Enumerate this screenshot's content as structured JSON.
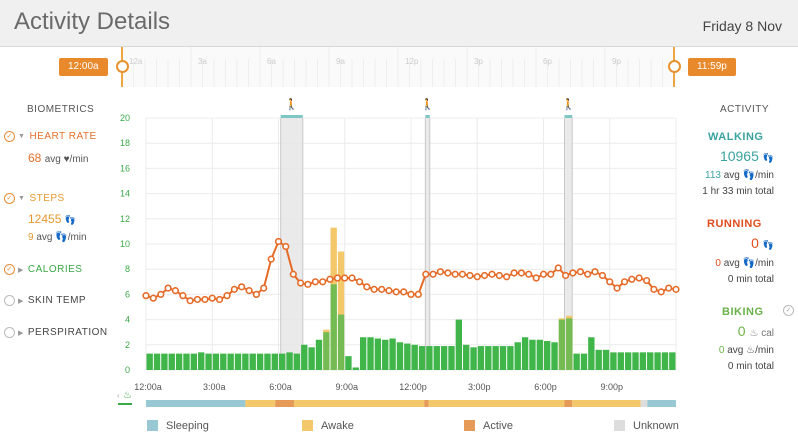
{
  "header": {
    "title": "Activity Details",
    "date": "Friday 8 Nov"
  },
  "timeline": {
    "start_label": "12:00a",
    "end_label": "11:59p",
    "ticks": [
      "12a",
      "3a",
      "6a",
      "9a",
      "12p",
      "3p",
      "6p",
      "9p"
    ]
  },
  "biometrics": {
    "heading": "BIOMETRICS",
    "heart_rate": {
      "label": "HEART RATE",
      "value": "68",
      "unit": "avg ♥/min",
      "color": "#e5702a",
      "checked": true
    },
    "steps": {
      "label": "STEPS",
      "value": "12455",
      "value_unit": "👣",
      "sub_value": "9",
      "sub_unit": "avg 👣/min",
      "color": "#e8982f",
      "checked": true
    },
    "calories": {
      "label": "CALORIES",
      "color": "#3aa847",
      "checked": true
    },
    "skin_temp": {
      "label": "SKIN TEMP",
      "checked": false
    },
    "perspiration": {
      "label": "PERSPIRATION",
      "checked": false
    }
  },
  "activity": {
    "heading": "ACTIVITY",
    "walking": {
      "label": "WALKING",
      "value": "10965",
      "unit": "👣",
      "avg": "113",
      "avg_unit": "avg 👣/min",
      "total": "1 hr 33 min total",
      "color": "#3aa3a0"
    },
    "running": {
      "label": "RUNNING",
      "value": "0",
      "unit": "👣",
      "avg": "0",
      "avg_unit": "avg 👣/min",
      "total": "0 min total",
      "color": "#e04d1f"
    },
    "biking": {
      "label": "BIKING",
      "value": "0",
      "unit": "♨ cal",
      "avg": "0",
      "avg_unit": "avg ♨/min",
      "total": "0 min total",
      "color": "#6ab24a"
    }
  },
  "legend": [
    {
      "label": "Sleeping",
      "color": "#98c8d4"
    },
    {
      "label": "Awake",
      "color": "#f2c86a"
    },
    {
      "label": "Active",
      "color": "#e59a58"
    },
    {
      "label": "Unknown",
      "color": "#dddddd"
    }
  ],
  "chart_data": {
    "type": "bar",
    "y_axis": {
      "min": 0,
      "max": 20,
      "ticks": [
        0,
        2,
        4,
        6,
        8,
        10,
        12,
        14,
        16,
        18,
        20
      ]
    },
    "x_ticks": [
      "12:00a",
      "3:00a",
      "6:00a",
      "9:00a",
      "12:00p",
      "3:00p",
      "6:00p",
      "9:00p"
    ],
    "x_range_hours": [
      0,
      24
    ],
    "grid": true,
    "series": [
      {
        "type": "bar",
        "color": "#3fb54a",
        "values": [
          1.3,
          1.3,
          1.3,
          1.3,
          1.3,
          1.3,
          1.3,
          1.4,
          1.3,
          1.3,
          1.3,
          1.3,
          1.3,
          1.3,
          1.3,
          1.3,
          1.3,
          1.3,
          1.3,
          1.4,
          1.3,
          2.0,
          1.8,
          2.4,
          3.0,
          6.8,
          4.4,
          1.1,
          0.2,
          2.6,
          2.6,
          2.5,
          2.4,
          2.5,
          2.2,
          2.1,
          2.0,
          1.9,
          1.9,
          1.9,
          1.9,
          1.9,
          4.0,
          2.0,
          1.8,
          1.9,
          1.9,
          1.9,
          1.9,
          1.9,
          2.2,
          2.6,
          2.4,
          2.4,
          2.3,
          2.2,
          4.0,
          4.1,
          1.3,
          1.3,
          2.6,
          1.6,
          1.6,
          1.4,
          1.4,
          1.4,
          1.4,
          1.4,
          1.4,
          1.4,
          1.4,
          1.4
        ]
      },
      {
        "type": "bar",
        "color": "#f2c86a",
        "values": [
          0,
          0,
          0,
          0,
          0,
          0,
          0,
          0,
          0,
          0,
          0,
          0,
          0,
          0,
          0,
          0,
          0,
          0,
          0,
          0,
          0,
          0,
          0,
          0,
          3.2,
          11.3,
          9.4,
          0,
          0,
          0,
          0,
          0,
          0,
          0,
          0,
          0,
          0,
          0,
          0,
          0,
          0,
          0,
          0,
          0,
          0,
          0,
          0,
          0,
          0,
          0,
          0,
          0,
          0,
          0,
          0,
          0,
          4.1,
          4.3,
          0,
          0,
          0,
          0,
          0,
          0,
          0,
          0,
          0,
          0,
          0,
          0,
          0,
          0
        ]
      },
      {
        "type": "line",
        "name": "Heart rate",
        "color": "#e56b28",
        "hours": [
          0,
          0.33,
          0.67,
          1.0,
          1.33,
          1.67,
          2.0,
          2.33,
          2.67,
          3.0,
          3.33,
          3.67,
          4.0,
          4.33,
          4.67,
          5.0,
          5.33,
          5.67,
          6.0,
          6.33,
          6.67,
          7.0,
          7.33,
          7.67,
          8.0,
          8.33,
          8.67,
          9.0,
          9.33,
          9.67,
          10.0,
          10.33,
          10.67,
          11.0,
          11.33,
          11.67,
          12.0,
          12.33,
          12.67,
          13.0,
          13.33,
          13.67,
          14.0,
          14.33,
          14.67,
          15.0,
          15.33,
          15.67,
          16.0,
          16.33,
          16.67,
          17.0,
          17.33,
          17.67,
          18.0,
          18.33,
          18.67,
          19.0,
          19.33,
          19.67,
          20.0,
          20.33,
          20.67,
          21.0,
          21.33,
          21.67,
          22.0,
          22.33,
          22.67,
          23.0,
          23.33,
          23.67,
          24.0
        ],
        "values": [
          5.9,
          5.7,
          6.0,
          6.5,
          6.3,
          5.9,
          5.5,
          5.6,
          5.6,
          5.7,
          5.6,
          5.9,
          6.4,
          6.6,
          6.3,
          6.0,
          6.5,
          8.8,
          10.2,
          9.8,
          7.6,
          6.9,
          6.8,
          7.0,
          7.0,
          7.2,
          7.3,
          7.3,
          7.3,
          7.0,
          6.6,
          6.4,
          6.4,
          6.3,
          6.2,
          6.2,
          6.0,
          6.0,
          7.6,
          7.6,
          7.8,
          7.7,
          7.6,
          7.6,
          7.5,
          7.4,
          7.5,
          7.6,
          7.5,
          7.4,
          7.7,
          7.7,
          7.6,
          7.3,
          7.6,
          7.6,
          8.1,
          7.5,
          7.7,
          7.8,
          7.6,
          7.8,
          7.5,
          7.0,
          6.5,
          7.0,
          7.2,
          7.3,
          7.1,
          6.4,
          6.2,
          6.5,
          6.4
        ]
      }
    ],
    "activity_marks": [
      {
        "kind": "walking",
        "start_hour": 6.1,
        "end_hour": 7.1
      },
      {
        "kind": "walking",
        "start_hour": 12.65,
        "end_hour": 12.85
      },
      {
        "kind": "walking",
        "start_hour": 18.95,
        "end_hour": 19.3
      }
    ],
    "state_bar": {
      "segments": [
        {
          "state": "Sleeping",
          "start": 0,
          "end": 4.5
        },
        {
          "state": "Awake",
          "start": 4.5,
          "end": 5.85
        },
        {
          "state": "Active",
          "start": 5.85,
          "end": 6.7
        },
        {
          "state": "Awake",
          "start": 6.7,
          "end": 12.6
        },
        {
          "state": "Active",
          "start": 12.6,
          "end": 12.8
        },
        {
          "state": "Awake",
          "start": 12.8,
          "end": 18.95
        },
        {
          "state": "Active",
          "start": 18.95,
          "end": 19.3
        },
        {
          "state": "Awake",
          "start": 19.3,
          "end": 22.4
        },
        {
          "state": "Unknown",
          "start": 22.4,
          "end": 22.7
        },
        {
          "state": "Sleeping",
          "start": 22.7,
          "end": 24
        }
      ]
    }
  }
}
